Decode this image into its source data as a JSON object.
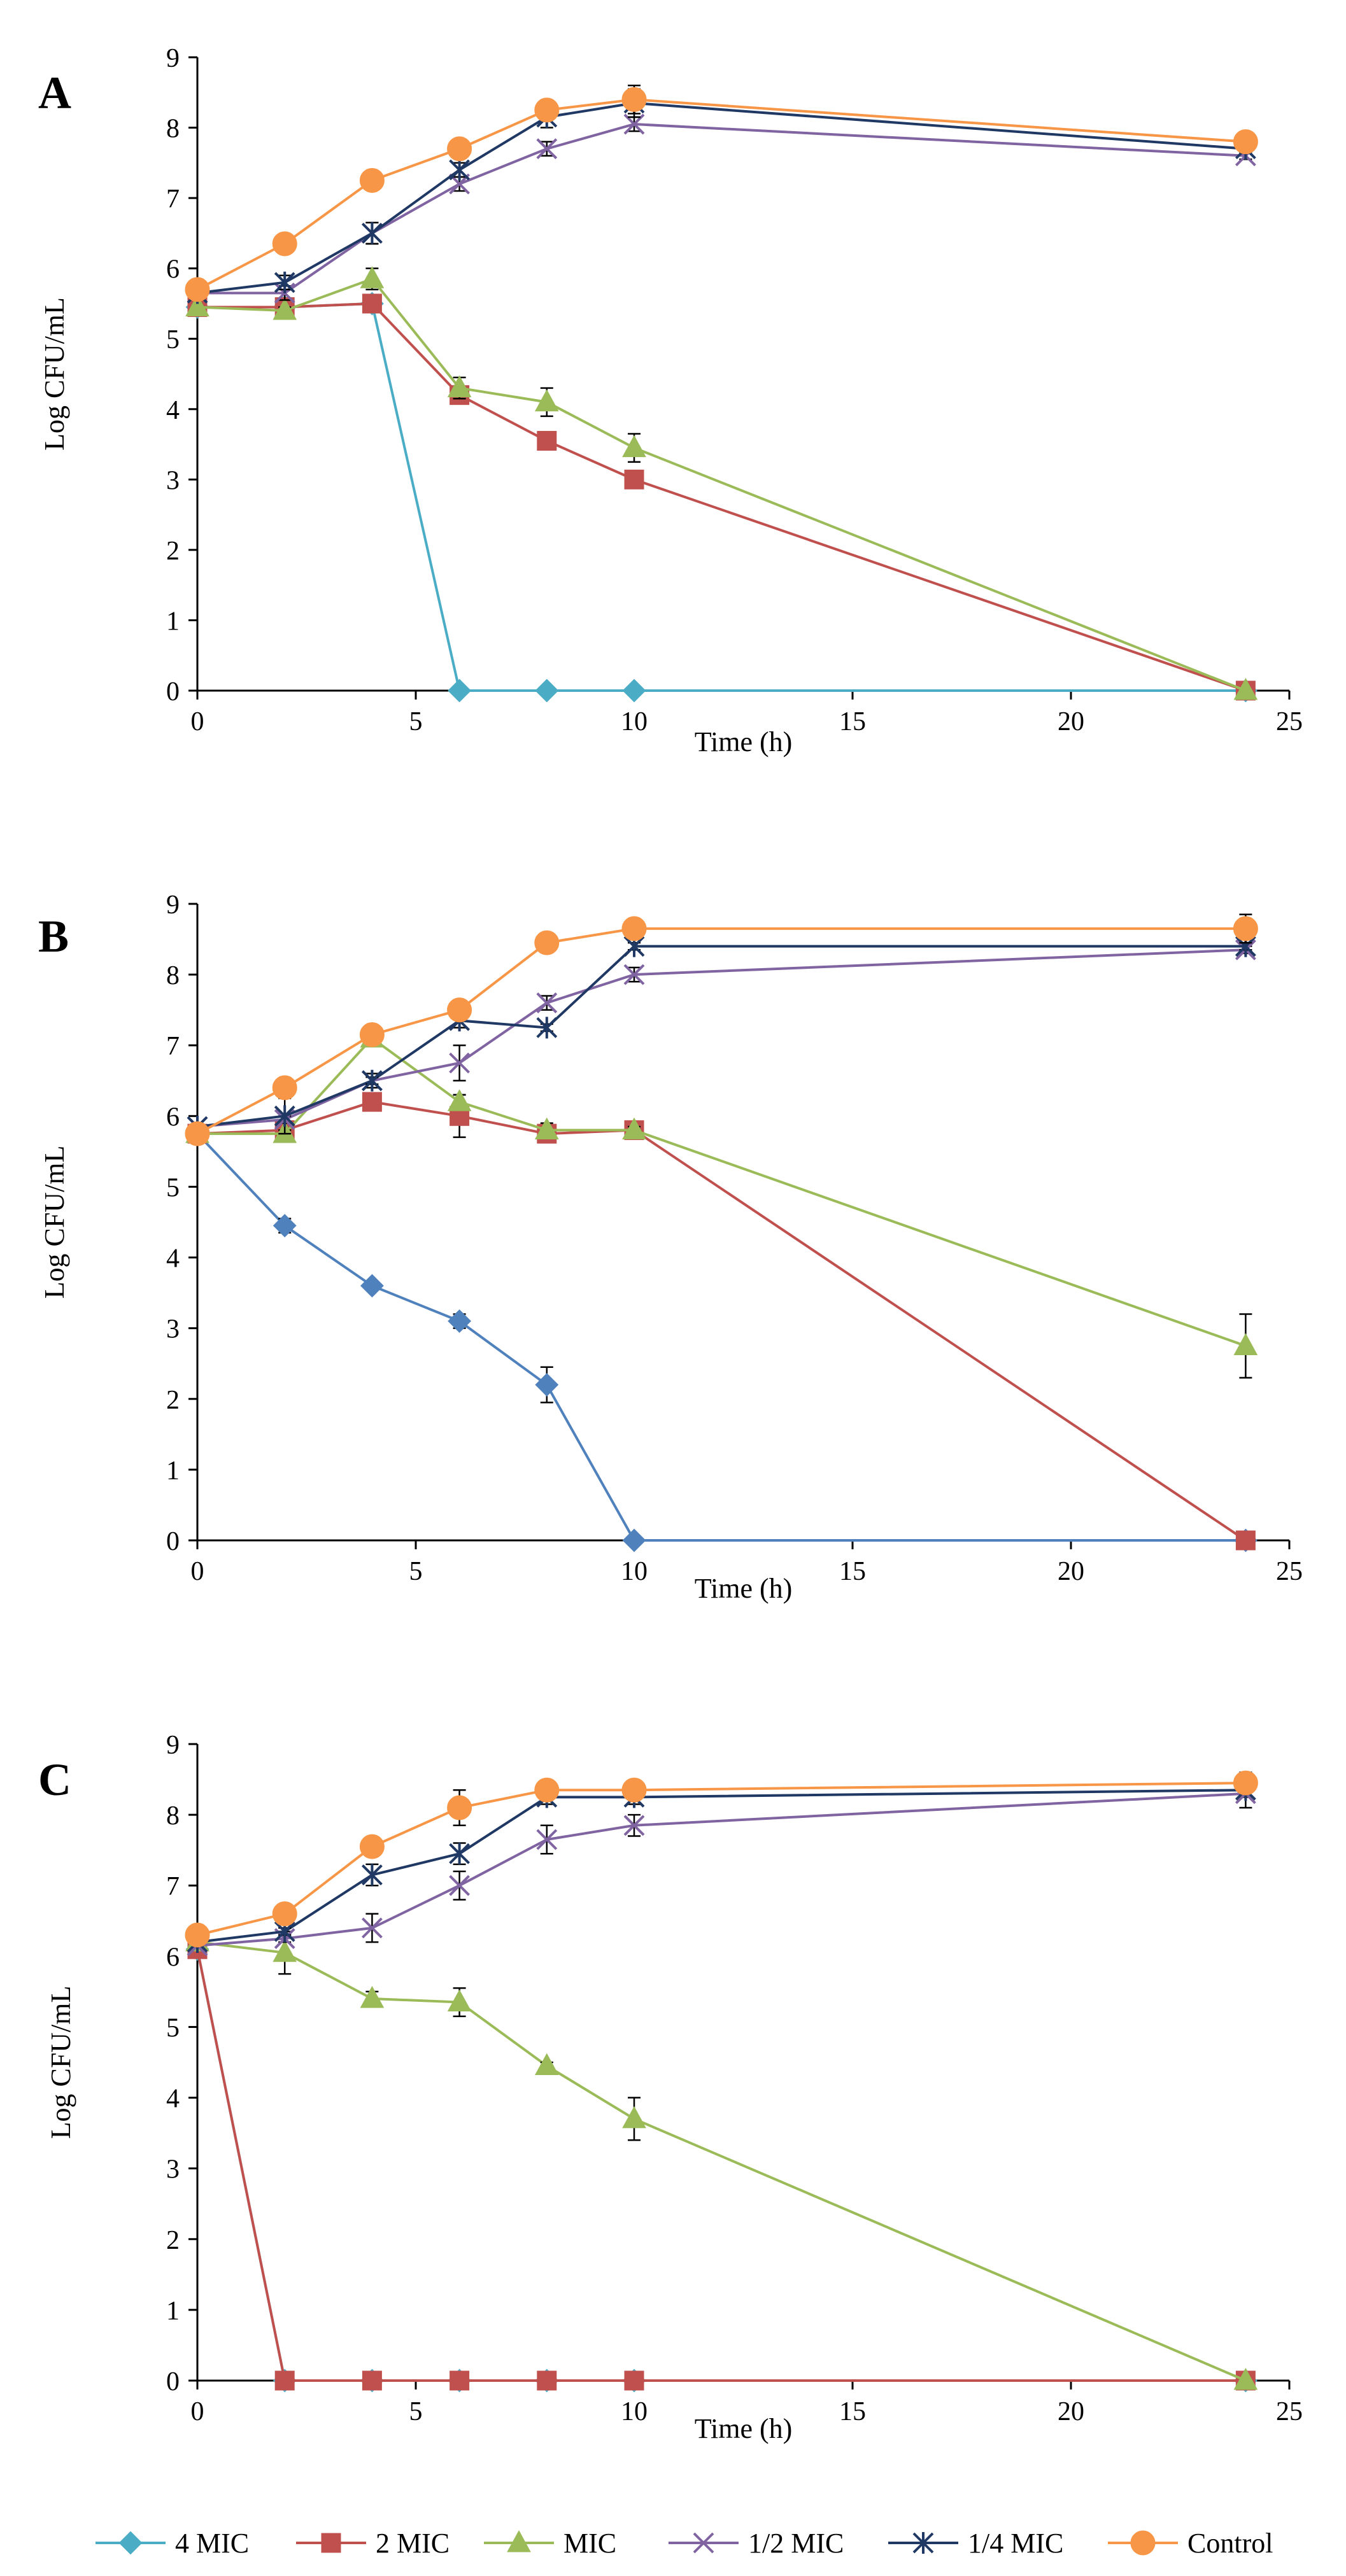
{
  "legend": [
    {
      "key": "4mic",
      "label": "4 MIC",
      "color": "#4bacc6",
      "marker": "diamond"
    },
    {
      "key": "2mic",
      "label": "2 MIC",
      "color": "#c0504d",
      "marker": "square"
    },
    {
      "key": "mic",
      "label": "MIC",
      "color": "#9bbb59",
      "marker": "triangle"
    },
    {
      "key": "half",
      "label": "1/2 MIC",
      "color": "#8064a2",
      "marker": "x"
    },
    {
      "key": "quarter",
      "label": "1/4 MIC",
      "color": "#1f3864",
      "marker": "star"
    },
    {
      "key": "control",
      "label": "Control",
      "color": "#f79646",
      "marker": "circle"
    }
  ],
  "chart_data": [
    {
      "panel": "A",
      "type": "line",
      "title": "",
      "xlabel": "Time (h)",
      "ylabel": "Log CFU/mL",
      "xlim": [
        0,
        25
      ],
      "ylim": [
        0,
        9
      ],
      "xticks": [
        "0",
        "5",
        "10",
        "15",
        "20",
        "25"
      ],
      "yticks": [
        "0",
        "1",
        "2",
        "3",
        "4",
        "5",
        "6",
        "7",
        "8",
        "9"
      ],
      "x": [
        0,
        2,
        4,
        6,
        8,
        10,
        24
      ],
      "series": [
        {
          "name": "4 MIC",
          "color": "#4bacc6",
          "values": [
            5.45,
            5.45,
            5.5,
            0,
            0,
            0,
            0
          ],
          "errors": [
            0,
            0,
            0,
            0,
            0,
            0,
            0
          ]
        },
        {
          "name": "2 MIC",
          "color": "#c0504d",
          "values": [
            5.45,
            5.45,
            5.5,
            4.2,
            3.55,
            3.0,
            0
          ],
          "errors": [
            0,
            0,
            0.05,
            0.1,
            0.1,
            0.1,
            0
          ]
        },
        {
          "name": "MIC",
          "color": "#9bbb59",
          "values": [
            5.45,
            5.4,
            5.85,
            4.3,
            4.1,
            3.45,
            0
          ],
          "errors": [
            0,
            0.05,
            0.15,
            0.15,
            0.2,
            0.2,
            0
          ]
        },
        {
          "name": "1/2 MIC",
          "color": "#8064a2",
          "values": [
            5.65,
            5.65,
            6.5,
            7.2,
            7.7,
            8.05,
            7.6
          ],
          "errors": [
            0,
            0.1,
            0.15,
            0.1,
            0.1,
            0.1,
            0.05
          ]
        },
        {
          "name": "1/4 MIC",
          "color": "#1f3864",
          "values": [
            5.65,
            5.8,
            6.5,
            7.4,
            8.15,
            8.35,
            7.7
          ],
          "errors": [
            0,
            0.1,
            0.15,
            0.1,
            0.15,
            0.2,
            0.05
          ]
        },
        {
          "name": "Control",
          "color": "#f79646",
          "values": [
            5.7,
            6.35,
            7.25,
            7.7,
            8.25,
            8.4,
            7.8
          ],
          "errors": [
            0,
            0.05,
            0.05,
            0.05,
            0.1,
            0.2,
            0.1
          ]
        }
      ]
    },
    {
      "panel": "B",
      "type": "line",
      "title": "",
      "xlabel": "Time (h)",
      "ylabel": "Log CFU/mL",
      "xlim": [
        0,
        25
      ],
      "ylim": [
        0,
        9
      ],
      "xticks": [
        "0",
        "5",
        "10",
        "15",
        "20",
        "25"
      ],
      "yticks": [
        "0",
        "1",
        "2",
        "3",
        "4",
        "5",
        "6",
        "7",
        "8",
        "9"
      ],
      "x": [
        0,
        2,
        4,
        6,
        8,
        10,
        24
      ],
      "series": [
        {
          "name": "4 MIC",
          "color": "#4f81bd",
          "values": [
            5.75,
            4.45,
            3.6,
            3.1,
            2.2,
            0,
            0
          ],
          "errors": [
            0,
            0.1,
            0.05,
            0.1,
            0.25,
            0,
            0
          ]
        },
        {
          "name": "2 MIC",
          "color": "#c0504d",
          "values": [
            5.75,
            5.8,
            6.2,
            6.0,
            5.75,
            5.8,
            0
          ],
          "errors": [
            0,
            0.05,
            0.1,
            0.3,
            0.1,
            0.1,
            0
          ]
        },
        {
          "name": "MIC",
          "color": "#9bbb59",
          "values": [
            5.75,
            5.75,
            7.1,
            6.2,
            5.8,
            5.8,
            2.75
          ],
          "errors": [
            0,
            0.05,
            0.05,
            0.1,
            0.1,
            0.05,
            0.45
          ]
        },
        {
          "name": "1/2 MIC",
          "color": "#8064a2",
          "values": [
            5.85,
            5.95,
            6.5,
            6.75,
            7.6,
            8.0,
            8.35
          ],
          "errors": [
            0,
            0.05,
            0.1,
            0.25,
            0.1,
            0.1,
            0.05
          ]
        },
        {
          "name": "1/4 MIC",
          "color": "#1f3864",
          "values": [
            5.85,
            6.0,
            6.5,
            7.35,
            7.25,
            8.4,
            8.4
          ],
          "errors": [
            0,
            0.25,
            0.05,
            0.1,
            0.05,
            0.05,
            0.05
          ]
        },
        {
          "name": "Control",
          "color": "#f79646",
          "values": [
            5.75,
            6.4,
            7.15,
            7.5,
            8.45,
            8.65,
            8.65
          ],
          "errors": [
            0,
            0.05,
            0.05,
            0.05,
            0.05,
            0.05,
            0.2
          ]
        }
      ]
    },
    {
      "panel": "C",
      "type": "line",
      "title": "",
      "xlabel": "Time (h)",
      "ylabel": "Log CFU/mL",
      "xlim": [
        0,
        25
      ],
      "ylim": [
        0,
        9
      ],
      "xticks": [
        "0",
        "5",
        "10",
        "15",
        "20",
        "25"
      ],
      "yticks": [
        "0",
        "1",
        "2",
        "3",
        "4",
        "5",
        "6",
        "7",
        "8",
        "9"
      ],
      "x": [
        0,
        2,
        4,
        6,
        8,
        10,
        24
      ],
      "series": [
        {
          "name": "4 MIC",
          "color": "#4bacc6",
          "values": [
            6.1,
            0,
            0,
            0,
            0,
            0,
            0
          ],
          "errors": [
            0,
            0,
            0,
            0,
            0,
            0,
            0
          ]
        },
        {
          "name": "2 MIC",
          "color": "#c0504d",
          "values": [
            6.1,
            0,
            0,
            0,
            0,
            0,
            0
          ],
          "errors": [
            0,
            0,
            0,
            0,
            0,
            0,
            0
          ]
        },
        {
          "name": "MIC",
          "color": "#9bbb59",
          "values": [
            6.2,
            6.05,
            5.4,
            5.35,
            4.45,
            3.7,
            0
          ],
          "errors": [
            0,
            0.3,
            0.1,
            0.2,
            0.05,
            0.3,
            0
          ]
        },
        {
          "name": "1/2 MIC",
          "color": "#8064a2",
          "values": [
            6.15,
            6.25,
            6.4,
            7.0,
            7.65,
            7.85,
            8.3
          ],
          "errors": [
            0,
            0.05,
            0.2,
            0.2,
            0.2,
            0.15,
            0.05
          ]
        },
        {
          "name": "1/4 MIC",
          "color": "#1f3864",
          "values": [
            6.2,
            6.35,
            7.15,
            7.45,
            8.25,
            8.25,
            8.35
          ],
          "errors": [
            0,
            0.05,
            0.15,
            0.15,
            0.1,
            0.1,
            0.25
          ]
        },
        {
          "name": "Control",
          "color": "#f79646",
          "values": [
            6.3,
            6.6,
            7.55,
            8.1,
            8.35,
            8.35,
            8.45
          ],
          "errors": [
            0,
            0.05,
            0.1,
            0.25,
            0.05,
            0.05,
            0.1
          ]
        }
      ]
    }
  ]
}
